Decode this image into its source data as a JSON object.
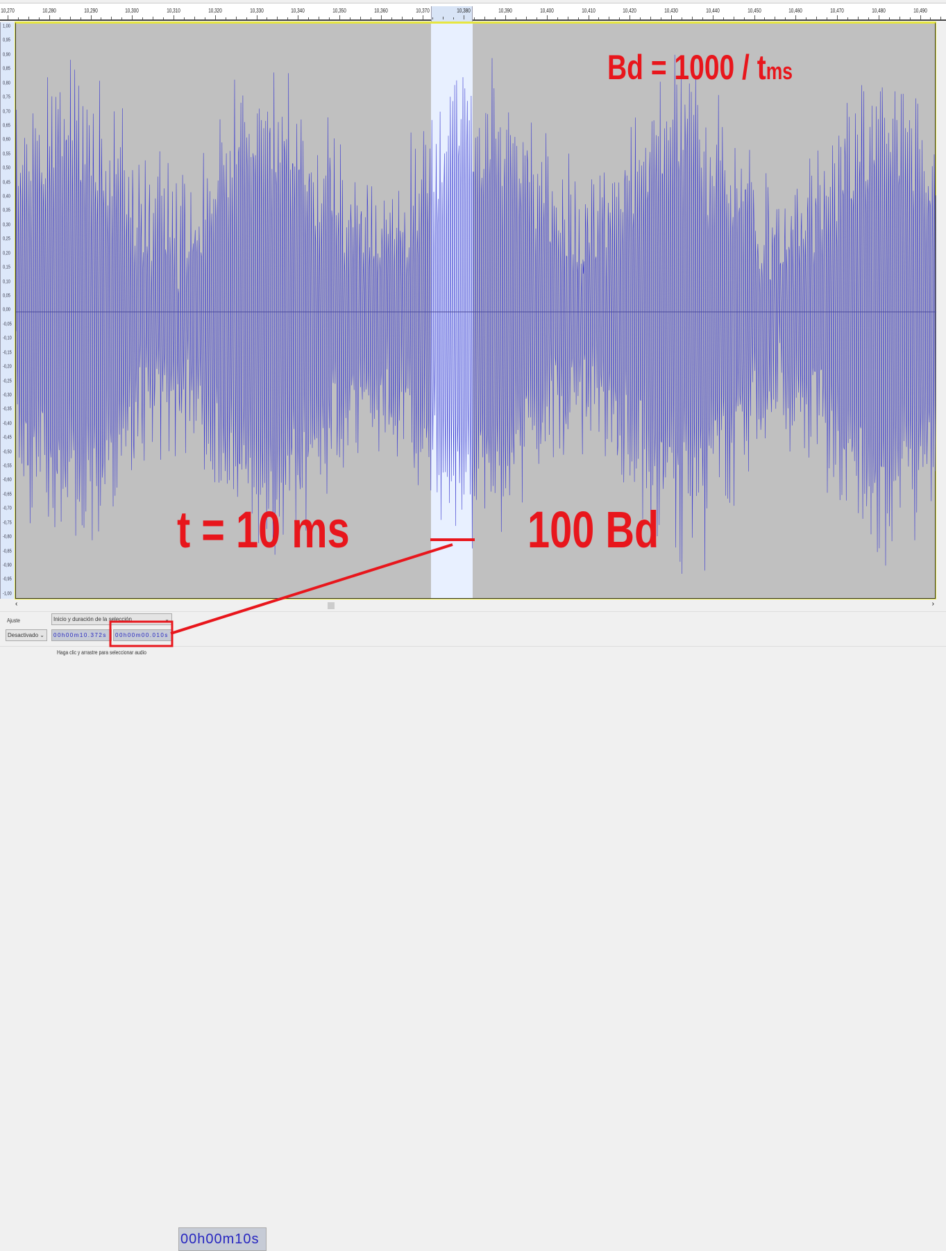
{
  "ruler": {
    "labels": [
      "10,270",
      "10,280",
      "10,290",
      "10,300",
      "10,310",
      "10,320",
      "10,330",
      "10,340",
      "10,350",
      "10,360",
      "10,370",
      "10,380",
      "10,390",
      "10,400",
      "10,410",
      "10,420",
      "10,430",
      "10,440",
      "10,450",
      "10,460",
      "10,470",
      "10,480",
      "10,490"
    ]
  },
  "amplitude_scale": {
    "labels": [
      "1,00",
      "0,95",
      "0,90",
      "0,85",
      "0,80",
      "0,75",
      "0,70",
      "0,65",
      "0,60",
      "0,55",
      "0,50",
      "0,45",
      "0,40",
      "0,35",
      "0,30",
      "0,25",
      "0,20",
      "0,15",
      "0,10",
      "0,05",
      "0,00",
      "-0,05",
      "-0,10",
      "-0,15",
      "-0,20",
      "-0,25",
      "-0,30",
      "-0,35",
      "-0,40",
      "-0,45",
      "-0,50",
      "-0,55",
      "-0,60",
      "-0,65",
      "-0,70",
      "-0,75",
      "-0,80",
      "-0,85",
      "-0,90",
      "-0,95",
      "-1,00"
    ]
  },
  "colors": {
    "waveform": "#3a3ad0",
    "track_bg": "#c0c0c0",
    "selection": "#e8f0ff",
    "annotation": "#e8161c"
  },
  "selection": {
    "start": "10,370",
    "end": "10,380"
  },
  "annotations": {
    "formula_main": "Bd = 1000 / t",
    "formula_sub": "ms",
    "duration": "t = 10 ms",
    "baud": "100 Bd"
  },
  "toolbar": {
    "snap_label": "Ajuste",
    "snap_value": "Desactivado",
    "selection_mode": "Inicio y duración de la selección",
    "selection_start": "00h00m10.372s",
    "selection_length": "00h00m00.010s",
    "audio_position": "00h00m10s"
  },
  "status": {
    "text": "Haga clic y arrastre para seleccionar audio"
  },
  "scroll": {
    "left_arrow": "‹",
    "right_arrow": "›"
  }
}
